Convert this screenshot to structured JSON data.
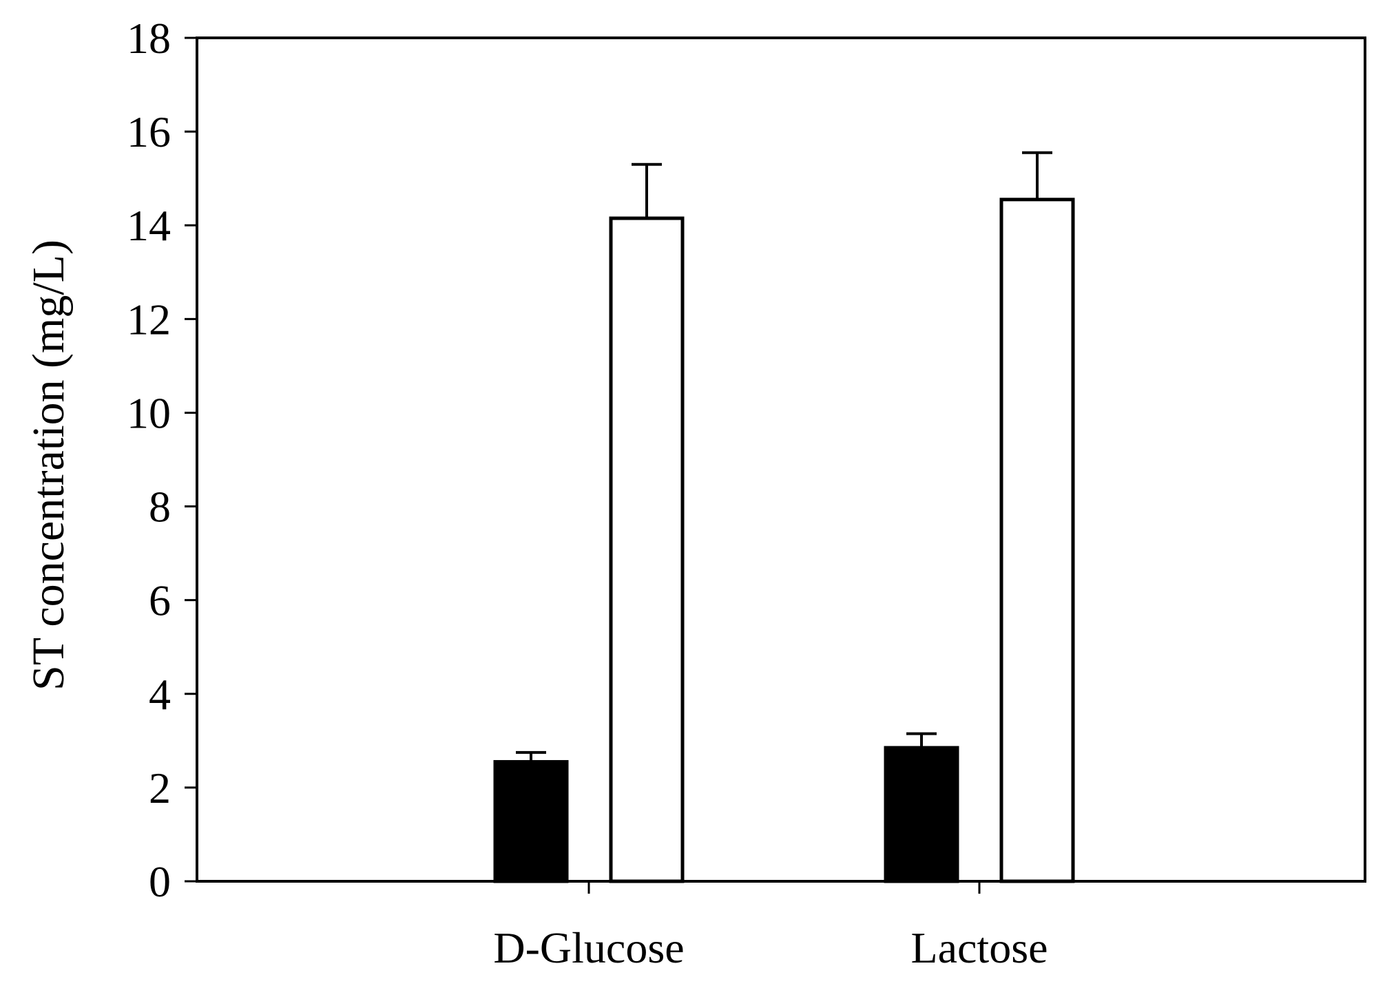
{
  "chart_data": {
    "type": "bar",
    "title": "",
    "xlabel": "",
    "ylabel": "ST concentration (mg/L)",
    "ylim": [
      0,
      18
    ],
    "yticks": [
      0,
      2,
      4,
      6,
      8,
      10,
      12,
      14,
      16,
      18
    ],
    "grid": false,
    "legend": "none",
    "categories": [
      "D-Glucose",
      "Lactose"
    ],
    "series": [
      {
        "fill": "#000000",
        "values": [
          2.55,
          2.85
        ],
        "errors": [
          0.2,
          0.3
        ]
      },
      {
        "fill": "#ffffff",
        "values": [
          14.15,
          14.55
        ],
        "errors": [
          1.15,
          1.0
        ]
      }
    ]
  }
}
